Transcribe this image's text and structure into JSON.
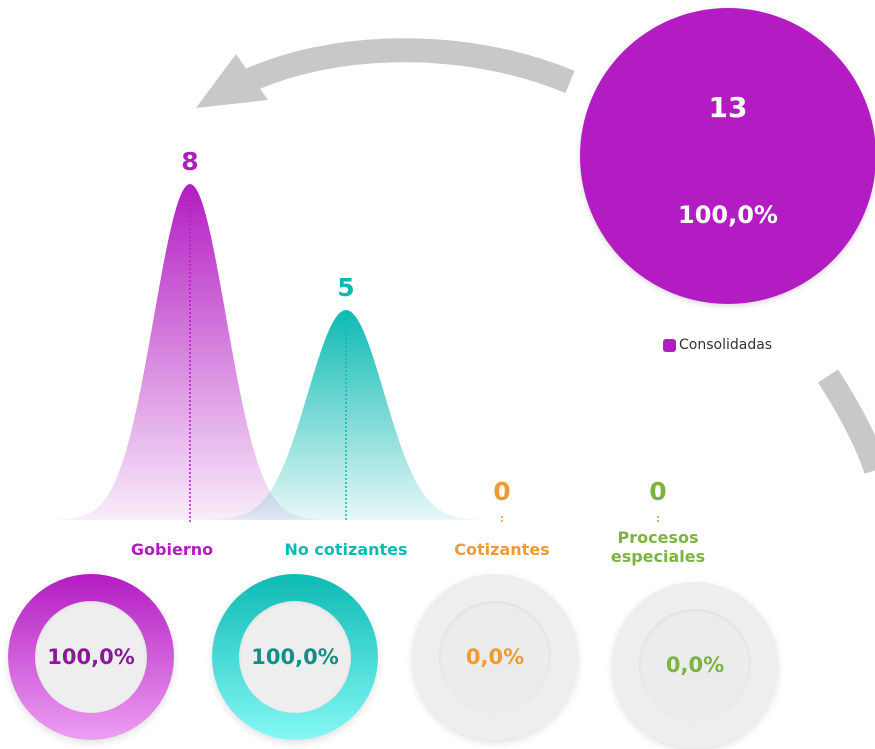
{
  "colors": {
    "gobierno": "#b31cc2",
    "no_cotizantes": "#0dbab3",
    "cotizantes": "#ee9b35",
    "procesos": "#7cb342",
    "consolidadas": "#b31cc2",
    "arrow": "#c8c8c8"
  },
  "total": {
    "value": "13",
    "percent": "100,0%",
    "legend_label": "Consolidadas"
  },
  "chart_data": {
    "type": "area",
    "categories": [
      "Gobierno",
      "No cotizantes",
      "Cotizantes",
      "Procesos especiales"
    ],
    "values": [
      8,
      5,
      0,
      0
    ],
    "data_labels": [
      "8",
      "5",
      "0",
      "0"
    ],
    "percentages": [
      "100,0%",
      "100,0%",
      "0,0%",
      "0,0%"
    ],
    "percent_values": [
      100,
      100,
      0,
      0
    ],
    "ylim": [
      0,
      8
    ],
    "grid": false,
    "legend": "right"
  }
}
